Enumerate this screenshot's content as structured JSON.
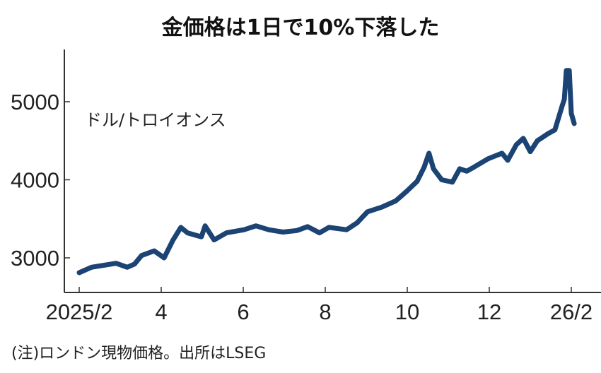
{
  "chart_data": {
    "type": "line",
    "title": "金価格は1日で10%下落した",
    "unit_label": "ドル/トロイオンス",
    "note": "(注)ロンドン現物価格。出所はLSEG",
    "xlabel": "",
    "ylabel": "ドル/トロイオンス",
    "x_unit": "months since 2025/2",
    "xlim": [
      0,
      12.1
    ],
    "ylim": [
      2600,
      5600
    ],
    "x_ticks": [
      {
        "value": 0,
        "label": "2025/2"
      },
      {
        "value": 2,
        "label": "4"
      },
      {
        "value": 4,
        "label": "6"
      },
      {
        "value": 6,
        "label": "8"
      },
      {
        "value": 8,
        "label": "10"
      },
      {
        "value": 10,
        "label": "12"
      },
      {
        "value": 12,
        "label": "26/2"
      }
    ],
    "y_ticks": [
      {
        "value": 3000,
        "label": "3000"
      },
      {
        "value": 4000,
        "label": "4000"
      },
      {
        "value": 5000,
        "label": "5000"
      }
    ],
    "grid": false,
    "color": "#1b4373",
    "series": [
      {
        "name": "金価格",
        "x": [
          0,
          0.3,
          0.66,
          0.9,
          1.17,
          1.35,
          1.52,
          1.83,
          2.07,
          2.29,
          2.48,
          2.64,
          2.98,
          3.07,
          3.29,
          3.59,
          4.02,
          4.31,
          4.62,
          4.97,
          5.31,
          5.57,
          5.86,
          6.09,
          6.52,
          6.78,
          7.03,
          7.38,
          7.72,
          7.98,
          8.24,
          8.41,
          8.53,
          8.64,
          8.84,
          9.1,
          9.28,
          9.45,
          9.62,
          9.97,
          10.31,
          10.45,
          10.66,
          10.83,
          11.0,
          11.17,
          11.43,
          11.6,
          11.78,
          11.83,
          11.88,
          11.95,
          12.0,
          12.07
        ],
        "values": [
          2810,
          2880,
          2910,
          2930,
          2880,
          2920,
          3030,
          3090,
          3000,
          3230,
          3390,
          3320,
          3270,
          3410,
          3230,
          3320,
          3360,
          3410,
          3360,
          3330,
          3350,
          3400,
          3320,
          3390,
          3360,
          3450,
          3590,
          3650,
          3730,
          3850,
          3980,
          4160,
          4340,
          4140,
          4000,
          3970,
          4140,
          4110,
          4160,
          4270,
          4340,
          4250,
          4450,
          4530,
          4360,
          4500,
          4590,
          4640,
          4950,
          5030,
          5400,
          5400,
          4850,
          4720
        ]
      }
    ]
  }
}
